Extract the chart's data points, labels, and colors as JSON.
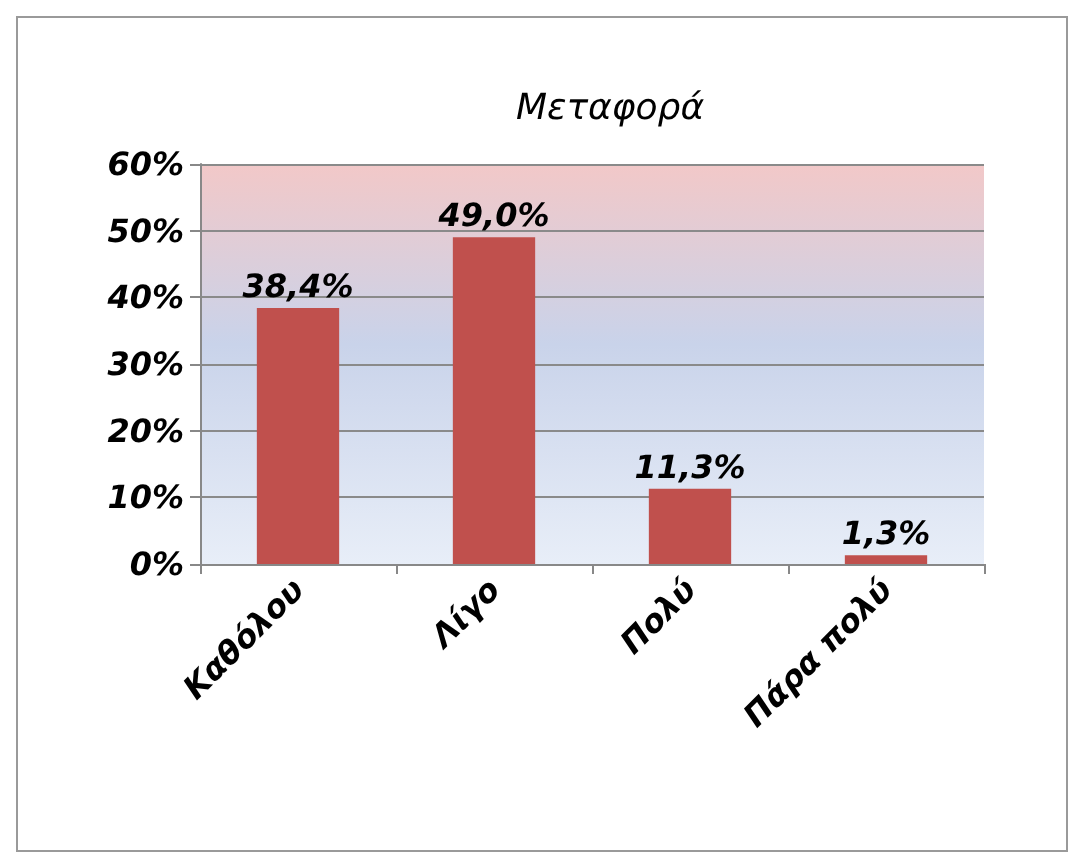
{
  "chart_data": {
    "type": "bar",
    "title": "Μεταφορά",
    "categories": [
      "Καθόλου",
      "Λίγο",
      "Πολύ",
      "Πάρα πολύ"
    ],
    "values": [
      38.4,
      49.0,
      11.3,
      1.3
    ],
    "value_labels": [
      "38,4%",
      "49,0%",
      "11,3%",
      "1,3%"
    ],
    "color": "#c0504d",
    "ylim": [
      0,
      60
    ],
    "yticks": [
      {
        "value": 0,
        "label": "0%"
      },
      {
        "value": 10,
        "label": "10%"
      },
      {
        "value": 20,
        "label": "20%"
      },
      {
        "value": 30,
        "label": "30%"
      },
      {
        "value": 40,
        "label": "40%"
      },
      {
        "value": 50,
        "label": "50%"
      },
      {
        "value": 60,
        "label": "60%"
      }
    ],
    "grid": true
  }
}
